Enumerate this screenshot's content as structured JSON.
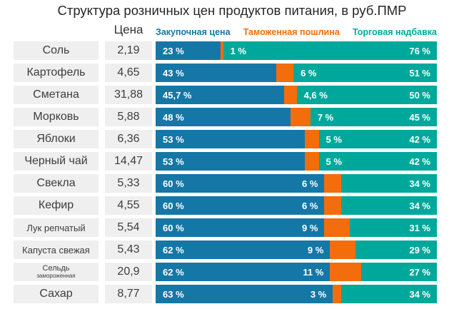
{
  "title": "Структура розничных цен продуктов питания, в руб.ПМР",
  "price_header": "Цена",
  "colors": {
    "purchase": "#1577A6",
    "duty": "#F36D0D",
    "markup": "#00A89B",
    "row_bg": "#EFEFEF"
  },
  "legend": [
    {
      "label": "Закупочная цена",
      "color": "#1577A6"
    },
    {
      "label": "Таможенная пошлина",
      "color": "#F36D0D"
    },
    {
      "label": "Торговая надбавка",
      "color": "#00A89B"
    }
  ],
  "rows": [
    {
      "label": "Соль",
      "sublabel": "",
      "price": "2,19",
      "purchase_pct": 23,
      "duty_pct": 1,
      "markup_pct": 76,
      "purchase_label": "23 %",
      "duty_label": "1 %",
      "markup_label": "76 %"
    },
    {
      "label": "Картофель",
      "sublabel": "",
      "price": "4,65",
      "purchase_pct": 43,
      "duty_pct": 6,
      "markup_pct": 51,
      "purchase_label": "43 %",
      "duty_label": "6 %",
      "markup_label": "51 %"
    },
    {
      "label": "Сметана",
      "sublabel": "",
      "price": "31,88",
      "purchase_pct": 45.7,
      "duty_pct": 4.6,
      "markup_pct": 50,
      "purchase_label": "45,7 %",
      "duty_label": "4,6 %",
      "markup_label": "50 %"
    },
    {
      "label": "Морковь",
      "sublabel": "",
      "price": "5,88",
      "purchase_pct": 48,
      "duty_pct": 7,
      "markup_pct": 45,
      "purchase_label": "48 %",
      "duty_label": "7 %",
      "markup_label": "45 %"
    },
    {
      "label": "Яблоки",
      "sublabel": "",
      "price": "6,36",
      "purchase_pct": 53,
      "duty_pct": 5,
      "markup_pct": 42,
      "purchase_label": "53 %",
      "duty_label": "5 %",
      "markup_label": "42 %"
    },
    {
      "label": "Черный чай",
      "sublabel": "",
      "price": "14,47",
      "purchase_pct": 53,
      "duty_pct": 5,
      "markup_pct": 42,
      "purchase_label": "53 %",
      "duty_label": "5 %",
      "markup_label": "42 %"
    },
    {
      "label": "Свекла",
      "sublabel": "",
      "price": "5,33",
      "purchase_pct": 60,
      "duty_pct": 6,
      "markup_pct": 34,
      "purchase_label": "60 %",
      "duty_label": "6 %",
      "markup_label": "34 %"
    },
    {
      "label": "Кефир",
      "sublabel": "",
      "price": "4,55",
      "purchase_pct": 60,
      "duty_pct": 6,
      "markup_pct": 34,
      "purchase_label": "60 %",
      "duty_label": "6 %",
      "markup_label": "34 %"
    },
    {
      "label": "Лук репчатый",
      "sublabel": "",
      "price": "5,54",
      "purchase_pct": 60,
      "duty_pct": 9,
      "markup_pct": 31,
      "purchase_label": "60 %",
      "duty_label": "9 %",
      "markup_label": "31 %"
    },
    {
      "label": "Капуста свежая",
      "sublabel": "",
      "price": "5,43",
      "purchase_pct": 62,
      "duty_pct": 9,
      "markup_pct": 29,
      "purchase_label": "62 %",
      "duty_label": "9 %",
      "markup_label": "29 %"
    },
    {
      "label": "Сельдь",
      "sublabel": "замороженная",
      "price": "20,9",
      "purchase_pct": 62,
      "duty_pct": 11,
      "markup_pct": 27,
      "purchase_label": "62 %",
      "duty_label": "11 %",
      "markup_label": "27 %"
    },
    {
      "label": "Сахар",
      "sublabel": "",
      "price": "8,77",
      "purchase_pct": 63,
      "duty_pct": 3,
      "markup_pct": 34,
      "purchase_label": "63 %",
      "duty_label": "3 %",
      "markup_label": "34 %"
    }
  ],
  "chart_data": {
    "type": "bar",
    "orientation": "horizontal",
    "stacked": true,
    "unit": "%",
    "title": "Структура розничных цен продуктов питания, в руб.ПМР",
    "categories": [
      "Соль",
      "Картофель",
      "Сметана",
      "Морковь",
      "Яблоки",
      "Черный чай",
      "Свекла",
      "Кефир",
      "Лук репчатый",
      "Капуста свежая",
      "Сельдь замороженная",
      "Сахар"
    ],
    "category_prices_rub": [
      2.19,
      4.65,
      31.88,
      5.88,
      6.36,
      14.47,
      5.33,
      4.55,
      5.54,
      5.43,
      20.9,
      8.77
    ],
    "series": [
      {
        "name": "Закупочная цена",
        "color": "#1577A6",
        "values": [
          23,
          43,
          45.7,
          48,
          53,
          53,
          60,
          60,
          60,
          62,
          62,
          63
        ]
      },
      {
        "name": "Таможенная пошлина",
        "color": "#F36D0D",
        "values": [
          1,
          6,
          4.6,
          7,
          5,
          5,
          6,
          6,
          9,
          9,
          11,
          3
        ]
      },
      {
        "name": "Торговая надбавка",
        "color": "#00A89B",
        "values": [
          76,
          51,
          50,
          45,
          42,
          42,
          34,
          34,
          31,
          29,
          27,
          34
        ]
      }
    ],
    "xlim": [
      0,
      100
    ],
    "legend_position": "top",
    "grid": false
  }
}
